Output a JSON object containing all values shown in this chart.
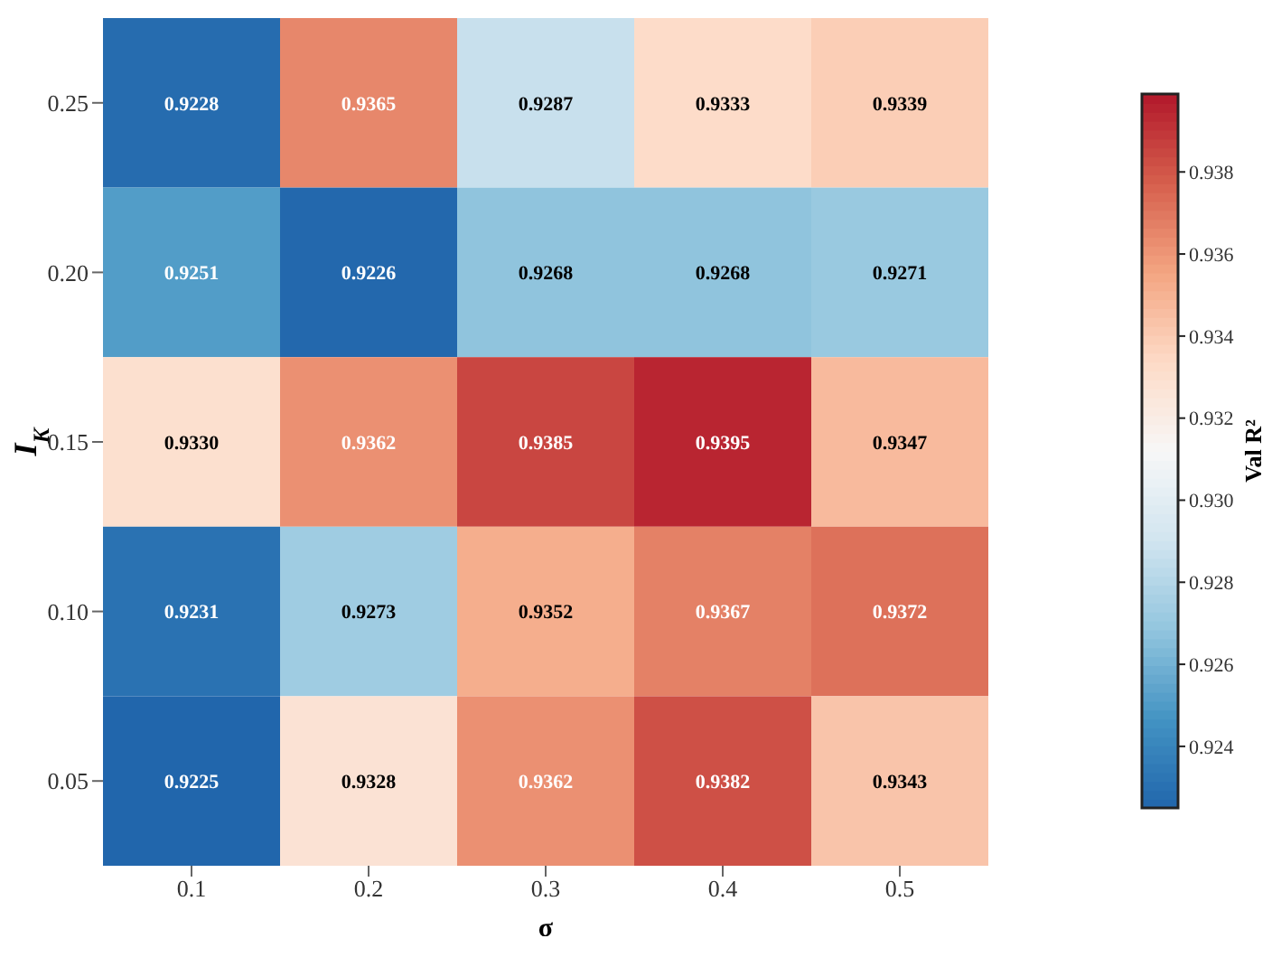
{
  "chart_data": {
    "type": "heatmap",
    "xlabel": "σ",
    "ylabel": "I$_{K}$",
    "clabel": "Val R²",
    "categories": [
      "0.1",
      "0.2",
      "0.3",
      "0.4",
      "0.5"
    ],
    "y_categories": [
      "0.25",
      "0.20",
      "0.15",
      "0.10",
      "0.05"
    ],
    "cells": [
      [
        0.9228,
        0.9365,
        0.9287,
        0.9333,
        0.9339
      ],
      [
        0.9251,
        0.9226,
        0.9268,
        0.9268,
        0.9271
      ],
      [
        0.933,
        0.9362,
        0.9385,
        0.9395,
        0.9347
      ],
      [
        0.9231,
        0.9273,
        0.9352,
        0.9367,
        0.9372
      ],
      [
        0.9225,
        0.9328,
        0.9362,
        0.9382,
        0.9343
      ]
    ],
    "clim": [
      0.9225,
      0.9399
    ],
    "cticks": [
      0.924,
      0.926,
      0.928,
      {
        "value": 0.93,
        "label": "0.930"
      },
      0.932,
      0.934,
      0.936,
      0.938
    ],
    "cell_labels": [
      [
        "0.9228",
        "0.9365",
        "0.9287",
        "0.9333",
        "0.9339"
      ],
      [
        "0.9251",
        "0.9226",
        "0.9268",
        "0.9268",
        "0.9271"
      ],
      [
        "0.9330",
        "0.9362",
        "0.9385",
        "0.9395",
        "0.9347"
      ],
      [
        "0.9231",
        "0.9273",
        "0.9352",
        "0.9367",
        "0.9372"
      ],
      [
        "0.9225",
        "0.9328",
        "0.9362",
        "0.9382",
        "0.9343"
      ]
    ],
    "data_labels": true
  }
}
